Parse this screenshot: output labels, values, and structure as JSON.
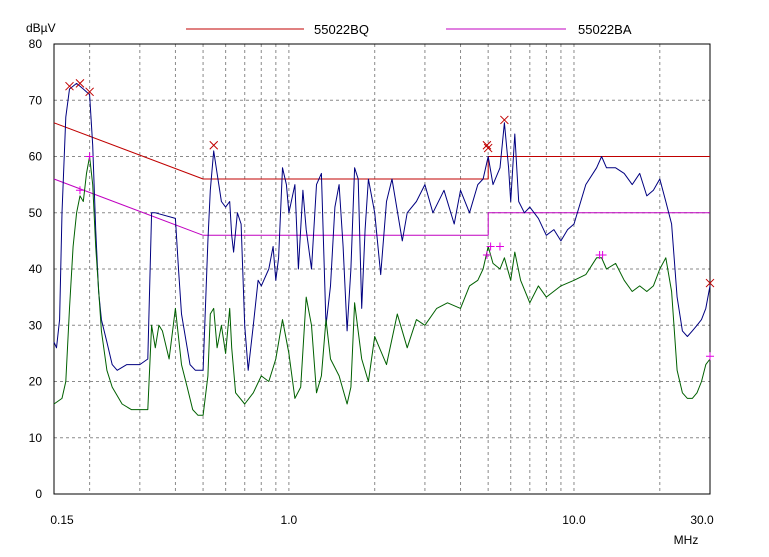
{
  "chart_data": {
    "type": "line",
    "ylabel": "dBµV",
    "xlabel": "MHz",
    "x_scale": "log",
    "xlim": [
      0.15,
      30.0
    ],
    "ylim": [
      0,
      80
    ],
    "grid": true,
    "legend_position": "top",
    "x_tick_labels": [
      "0.15",
      "1.0",
      "10.0",
      "30.0"
    ],
    "y_ticks": [
      0,
      10,
      20,
      30,
      40,
      50,
      60,
      70,
      80
    ],
    "series": [
      {
        "name": "55022BQ",
        "kind": "limit",
        "color": "#c00000",
        "points": [
          [
            0.15,
            66
          ],
          [
            0.5,
            56
          ],
          [
            5.0,
            56
          ],
          [
            5.0,
            60
          ],
          [
            30.0,
            60
          ]
        ]
      },
      {
        "name": "55022BA",
        "kind": "limit",
        "color": "#c000c0",
        "points": [
          [
            0.15,
            56
          ],
          [
            0.5,
            46
          ],
          [
            5.0,
            46
          ],
          [
            5.0,
            50
          ],
          [
            30.0,
            50
          ]
        ]
      },
      {
        "kind": "trace",
        "color": "#000080",
        "points": [
          [
            0.15,
            27
          ],
          [
            0.153,
            26
          ],
          [
            0.157,
            31
          ],
          [
            0.16,
            50
          ],
          [
            0.165,
            67
          ],
          [
            0.17,
            72
          ],
          [
            0.18,
            73
          ],
          [
            0.19,
            72
          ],
          [
            0.2,
            71
          ],
          [
            0.205,
            62
          ],
          [
            0.21,
            47
          ],
          [
            0.215,
            36
          ],
          [
            0.22,
            31
          ],
          [
            0.23,
            27
          ],
          [
            0.24,
            23
          ],
          [
            0.25,
            22
          ],
          [
            0.27,
            23
          ],
          [
            0.3,
            23
          ],
          [
            0.32,
            24
          ],
          [
            0.33,
            50
          ],
          [
            0.34,
            50
          ],
          [
            0.4,
            49
          ],
          [
            0.41,
            40
          ],
          [
            0.42,
            32
          ],
          [
            0.45,
            23
          ],
          [
            0.47,
            22
          ],
          [
            0.5,
            22
          ],
          [
            0.52,
            45
          ],
          [
            0.53,
            54
          ],
          [
            0.545,
            61
          ],
          [
            0.56,
            57
          ],
          [
            0.58,
            52
          ],
          [
            0.6,
            51
          ],
          [
            0.62,
            52
          ],
          [
            0.63,
            46
          ],
          [
            0.64,
            43
          ],
          [
            0.66,
            50
          ],
          [
            0.68,
            48
          ],
          [
            0.7,
            30
          ],
          [
            0.72,
            22
          ],
          [
            0.75,
            30
          ],
          [
            0.78,
            38
          ],
          [
            0.8,
            37
          ],
          [
            0.85,
            40
          ],
          [
            0.88,
            44
          ],
          [
            0.9,
            38
          ],
          [
            0.92,
            42
          ],
          [
            0.95,
            58
          ],
          [
            0.98,
            55
          ],
          [
            1.0,
            50
          ],
          [
            1.05,
            55
          ],
          [
            1.08,
            40
          ],
          [
            1.12,
            54
          ],
          [
            1.15,
            47
          ],
          [
            1.2,
            40
          ],
          [
            1.25,
            55
          ],
          [
            1.3,
            57
          ],
          [
            1.35,
            30
          ],
          [
            1.4,
            37
          ],
          [
            1.45,
            51
          ],
          [
            1.5,
            55
          ],
          [
            1.55,
            44
          ],
          [
            1.6,
            29
          ],
          [
            1.65,
            40
          ],
          [
            1.7,
            58
          ],
          [
            1.75,
            56
          ],
          [
            1.8,
            33
          ],
          [
            1.85,
            47
          ],
          [
            1.9,
            56
          ],
          [
            2.0,
            50
          ],
          [
            2.1,
            39
          ],
          [
            2.2,
            52
          ],
          [
            2.3,
            56
          ],
          [
            2.5,
            45
          ],
          [
            2.6,
            50
          ],
          [
            2.8,
            52
          ],
          [
            3.0,
            55
          ],
          [
            3.2,
            50
          ],
          [
            3.5,
            54
          ],
          [
            3.8,
            48
          ],
          [
            4.0,
            54
          ],
          [
            4.3,
            50
          ],
          [
            4.6,
            55
          ],
          [
            4.8,
            56
          ],
          [
            5.0,
            60
          ],
          [
            5.2,
            55
          ],
          [
            5.5,
            58
          ],
          [
            5.7,
            66
          ],
          [
            5.9,
            58
          ],
          [
            6.0,
            52
          ],
          [
            6.2,
            64
          ],
          [
            6.4,
            52
          ],
          [
            6.7,
            50
          ],
          [
            7.0,
            51
          ],
          [
            7.5,
            49
          ],
          [
            8.0,
            46
          ],
          [
            8.5,
            47
          ],
          [
            9.0,
            45
          ],
          [
            9.5,
            47
          ],
          [
            10.0,
            48
          ],
          [
            11.0,
            55
          ],
          [
            12.0,
            58
          ],
          [
            12.5,
            60
          ],
          [
            13.0,
            58
          ],
          [
            14.0,
            58
          ],
          [
            15.0,
            57
          ],
          [
            16.0,
            55
          ],
          [
            17.0,
            57
          ],
          [
            18.0,
            53
          ],
          [
            19.0,
            54
          ],
          [
            20.0,
            56
          ],
          [
            21.0,
            52
          ],
          [
            22.0,
            48
          ],
          [
            23.0,
            35
          ],
          [
            24.0,
            29
          ],
          [
            25.0,
            28
          ],
          [
            26.0,
            29
          ],
          [
            27.0,
            30
          ],
          [
            28.0,
            31
          ],
          [
            29.0,
            33
          ],
          [
            30.0,
            37
          ]
        ]
      },
      {
        "kind": "trace",
        "color": "#006000",
        "points": [
          [
            0.15,
            16
          ],
          [
            0.16,
            17
          ],
          [
            0.165,
            20
          ],
          [
            0.17,
            33
          ],
          [
            0.175,
            44
          ],
          [
            0.18,
            50
          ],
          [
            0.185,
            53
          ],
          [
            0.19,
            52
          ],
          [
            0.195,
            57
          ],
          [
            0.2,
            60
          ],
          [
            0.205,
            55
          ],
          [
            0.21,
            44
          ],
          [
            0.22,
            29
          ],
          [
            0.23,
            22
          ],
          [
            0.24,
            19
          ],
          [
            0.26,
            16
          ],
          [
            0.28,
            15
          ],
          [
            0.3,
            15
          ],
          [
            0.32,
            15
          ],
          [
            0.33,
            30
          ],
          [
            0.34,
            26
          ],
          [
            0.35,
            30
          ],
          [
            0.36,
            29
          ],
          [
            0.38,
            24
          ],
          [
            0.4,
            33
          ],
          [
            0.42,
            23
          ],
          [
            0.44,
            19
          ],
          [
            0.46,
            15
          ],
          [
            0.48,
            14
          ],
          [
            0.5,
            14
          ],
          [
            0.52,
            21
          ],
          [
            0.53,
            32
          ],
          [
            0.545,
            33
          ],
          [
            0.56,
            26
          ],
          [
            0.58,
            30
          ],
          [
            0.6,
            25
          ],
          [
            0.62,
            33
          ],
          [
            0.63,
            26
          ],
          [
            0.65,
            18
          ],
          [
            0.7,
            16
          ],
          [
            0.75,
            18
          ],
          [
            0.8,
            21
          ],
          [
            0.85,
            20
          ],
          [
            0.9,
            24
          ],
          [
            0.95,
            31
          ],
          [
            1.0,
            25
          ],
          [
            1.05,
            17
          ],
          [
            1.1,
            19
          ],
          [
            1.15,
            35
          ],
          [
            1.2,
            30
          ],
          [
            1.25,
            18
          ],
          [
            1.3,
            21
          ],
          [
            1.35,
            31
          ],
          [
            1.4,
            24
          ],
          [
            1.5,
            21
          ],
          [
            1.6,
            16
          ],
          [
            1.65,
            19
          ],
          [
            1.7,
            34
          ],
          [
            1.8,
            24
          ],
          [
            1.9,
            20
          ],
          [
            2.0,
            28
          ],
          [
            2.2,
            23
          ],
          [
            2.4,
            32
          ],
          [
            2.6,
            26
          ],
          [
            2.8,
            31
          ],
          [
            3.0,
            30
          ],
          [
            3.3,
            33
          ],
          [
            3.6,
            34
          ],
          [
            4.0,
            33
          ],
          [
            4.3,
            37
          ],
          [
            4.6,
            38
          ],
          [
            4.8,
            40
          ],
          [
            5.0,
            44
          ],
          [
            5.2,
            41
          ],
          [
            5.5,
            40
          ],
          [
            5.7,
            42
          ],
          [
            6.0,
            38
          ],
          [
            6.2,
            43
          ],
          [
            6.5,
            38
          ],
          [
            7.0,
            34
          ],
          [
            7.5,
            37
          ],
          [
            8.0,
            35
          ],
          [
            9.0,
            37
          ],
          [
            10.0,
            38
          ],
          [
            11.0,
            39
          ],
          [
            12.0,
            42
          ],
          [
            12.5,
            42
          ],
          [
            13.0,
            40
          ],
          [
            14.0,
            41
          ],
          [
            15.0,
            38
          ],
          [
            16.0,
            36
          ],
          [
            17.0,
            37
          ],
          [
            18.0,
            36
          ],
          [
            19.0,
            37
          ],
          [
            20.0,
            40
          ],
          [
            21.0,
            42
          ],
          [
            22.0,
            36
          ],
          [
            23.0,
            22
          ],
          [
            24.0,
            18
          ],
          [
            25.0,
            17
          ],
          [
            26.0,
            17
          ],
          [
            27.0,
            18
          ],
          [
            28.0,
            20
          ],
          [
            29.0,
            23
          ],
          [
            30.0,
            24
          ]
        ]
      }
    ],
    "markers": [
      {
        "color": "#c00000",
        "points": [
          [
            0.17,
            72.5
          ],
          [
            0.185,
            73
          ],
          [
            0.2,
            71.5
          ],
          [
            0.545,
            62
          ],
          [
            4.95,
            62
          ],
          [
            5.0,
            61.5
          ],
          [
            5.7,
            66.5
          ],
          [
            30.0,
            37.5
          ]
        ]
      },
      {
        "color": "#e000e0",
        "points": [
          [
            0.185,
            54
          ],
          [
            0.2,
            60
          ],
          [
            4.95,
            42.5
          ],
          [
            5.1,
            44
          ],
          [
            5.5,
            44
          ],
          [
            12.3,
            42.5
          ],
          [
            12.6,
            42.5
          ],
          [
            30.0,
            24.5
          ]
        ]
      }
    ]
  }
}
